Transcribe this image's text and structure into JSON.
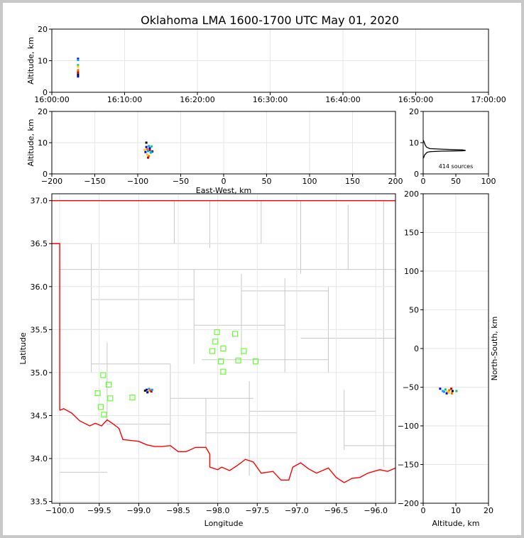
{
  "figure": {
    "title": "Oklahoma LMA 1600-1700 UTC May 01, 2020"
  },
  "chart_data": [
    {
      "type": "scatter",
      "panel": "time-altitude",
      "ylabel": "Altitude, km",
      "xlabel": "",
      "x_tick_labels": [
        "16:00:00",
        "16:10:00",
        "16:20:00",
        "16:30:00",
        "16:40:00",
        "16:50:00",
        "17:00:00"
      ],
      "xlim_minutes": [
        0,
        60
      ],
      "ylim": [
        0,
        20
      ],
      "y_ticks": [
        0,
        10,
        20
      ],
      "grid": true,
      "points": [
        [
          3.6,
          10.6
        ],
        [
          3.6,
          10.2
        ],
        [
          3.6,
          8.6
        ],
        [
          3.6,
          8.1
        ],
        [
          3.6,
          7.0
        ],
        [
          3.6,
          6.3
        ],
        [
          3.6,
          5.6
        ],
        [
          3.6,
          5.0
        ]
      ]
    },
    {
      "type": "scatter",
      "panel": "eastwest-altitude",
      "xlabel": "East-West, km",
      "ylabel": "Altitude, km",
      "xlim": [
        -200,
        200
      ],
      "ylim": [
        0,
        20
      ],
      "x_ticks": [
        -200,
        -150,
        -100,
        -50,
        0,
        50,
        100,
        150,
        200
      ],
      "y_ticks": [
        0,
        10,
        20
      ],
      "grid": true,
      "points": [
        [
          -90,
          8.6
        ],
        [
          -87,
          8.9
        ],
        [
          -84,
          8.8
        ],
        [
          -92,
          7.7
        ],
        [
          -89,
          7.9
        ],
        [
          -86,
          7.6
        ],
        [
          -83,
          7.2
        ],
        [
          -91,
          7.0
        ],
        [
          -88,
          7.3
        ],
        [
          -85,
          6.8
        ],
        [
          -89,
          6.2
        ],
        [
          -87,
          5.7
        ],
        [
          -88,
          5.2
        ],
        [
          -90,
          10.0
        ],
        [
          -86,
          8.2
        ],
        [
          -84,
          7.0
        ]
      ]
    },
    {
      "type": "line",
      "panel": "altitude-histogram",
      "xlim": [
        0,
        100
      ],
      "ylim": [
        0,
        20
      ],
      "x_ticks": [
        0,
        50,
        100
      ],
      "y_ticks": [
        0,
        10,
        20
      ],
      "annotation": "414 sources",
      "profile": [
        [
          0,
          5.0
        ],
        [
          1,
          5.3
        ],
        [
          2,
          6.0
        ],
        [
          4,
          6.5
        ],
        [
          6,
          6.9
        ],
        [
          10,
          7.1
        ],
        [
          30,
          7.3
        ],
        [
          60,
          7.4
        ],
        [
          65,
          7.5
        ],
        [
          60,
          7.7
        ],
        [
          30,
          7.9
        ],
        [
          10,
          8.1
        ],
        [
          5,
          8.6
        ],
        [
          3,
          9.3
        ],
        [
          2,
          9.9
        ],
        [
          1,
          10.4
        ],
        [
          0,
          10.8
        ]
      ]
    },
    {
      "type": "scatter",
      "panel": "plan-view",
      "xlabel": "Longitude",
      "ylabel": "Latitude",
      "xlim": [
        -100.1,
        -95.75
      ],
      "ylim": [
        33.48,
        37.08
      ],
      "x_ticks": [
        -100.0,
        -99.5,
        -99.0,
        -98.5,
        -98.0,
        -97.5,
        -97.0,
        -96.5,
        -96.0
      ],
      "y_ticks": [
        33.5,
        34.0,
        34.5,
        35.0,
        35.5,
        36.0,
        36.5,
        37.0
      ],
      "grid": true,
      "sources": [
        [
          -98.9,
          34.8
        ],
        [
          -98.87,
          34.81
        ],
        [
          -98.85,
          34.79
        ],
        [
          -98.88,
          34.78
        ],
        [
          -98.86,
          34.8
        ],
        [
          -98.84,
          34.78
        ],
        [
          -98.92,
          34.79
        ],
        [
          -98.89,
          34.77
        ],
        [
          -98.83,
          34.8
        ]
      ],
      "stations": [
        [
          -99.45,
          34.97
        ],
        [
          -99.38,
          34.86
        ],
        [
          -99.52,
          34.76
        ],
        [
          -99.36,
          34.7
        ],
        [
          -99.48,
          34.6
        ],
        [
          -99.44,
          34.51
        ],
        [
          -99.08,
          34.71
        ],
        [
          -98.01,
          35.47
        ],
        [
          -97.78,
          35.45
        ],
        [
          -98.03,
          35.36
        ],
        [
          -98.07,
          35.25
        ],
        [
          -97.93,
          35.28
        ],
        [
          -97.67,
          35.25
        ],
        [
          -97.96,
          35.13
        ],
        [
          -97.74,
          35.14
        ],
        [
          -97.52,
          35.13
        ],
        [
          -97.93,
          35.01
        ]
      ]
    },
    {
      "type": "scatter",
      "panel": "altitude-northsouth",
      "xlabel": "Altitude, km",
      "ylabel": "North-South, km",
      "xlim": [
        0,
        20
      ],
      "ylim": [
        -200,
        200
      ],
      "x_ticks": [
        0,
        10,
        20
      ],
      "y_ticks": [
        -200,
        -150,
        -100,
        -50,
        0,
        50,
        100,
        150,
        200
      ],
      "grid": true,
      "points": [
        [
          5.2,
          -52
        ],
        [
          6.0,
          -55
        ],
        [
          6.8,
          -53
        ],
        [
          7.4,
          -56
        ],
        [
          8.0,
          -54
        ],
        [
          8.6,
          -52
        ],
        [
          9.0,
          -55
        ],
        [
          7.2,
          -58
        ],
        [
          6.4,
          -56
        ],
        [
          10.2,
          -55
        ],
        [
          7.8,
          -57
        ],
        [
          8.8,
          -58
        ]
      ]
    }
  ],
  "colors": {
    "station": "#66ff33",
    "border": "#ff0000",
    "county": "#c8c8c8",
    "grid": "#e6e6e6"
  }
}
